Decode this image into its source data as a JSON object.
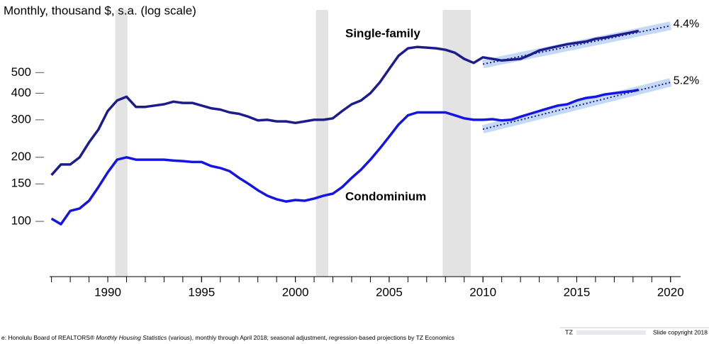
{
  "chart_data": {
    "type": "line",
    "ylabel": "Monthly, thousand $, s.a. (log scale)",
    "log_scale": true,
    "xlim": [
      1986.9,
      2020.5
    ],
    "ylim": [
      55,
      1000
    ],
    "xticks": [
      1990,
      1995,
      2000,
      2005,
      2010,
      2015,
      2020
    ],
    "yticks": [
      100,
      150,
      200,
      300,
      400,
      500
    ],
    "shaded": [
      [
        1990.4,
        1991.05
      ],
      [
        2001.1,
        2001.75
      ],
      [
        2007.85,
        2009.35
      ]
    ],
    "shade_color": "#e3e3e3",
    "x": [
      1987,
      1987.5,
      1988,
      1988.5,
      1989,
      1989.5,
      1990,
      1990.5,
      1991,
      1991.5,
      1992,
      1992.5,
      1993,
      1993.5,
      1994,
      1994.5,
      1995,
      1995.5,
      1996,
      1996.5,
      1997,
      1997.5,
      1998,
      1998.5,
      1999,
      1999.5,
      2000,
      2000.5,
      2001,
      2001.5,
      2002,
      2002.5,
      2003,
      2003.5,
      2004,
      2004.5,
      2005,
      2005.5,
      2006,
      2006.5,
      2007,
      2007.5,
      2008,
      2008.5,
      2009,
      2009.5,
      2010,
      2010.5,
      2011,
      2011.5,
      2012,
      2012.5,
      2013,
      2013.5,
      2014,
      2014.5,
      2015,
      2015.5,
      2016,
      2016.5,
      2017,
      2017.5,
      2018,
      2018.3
    ],
    "series": [
      {
        "name": "Single-family",
        "color": "#1c1c8e",
        "values": [
          165,
          185,
          185,
          200,
          235,
          270,
          330,
          370,
          385,
          345,
          345,
          350,
          355,
          365,
          360,
          360,
          350,
          340,
          335,
          325,
          320,
          310,
          298,
          300,
          295,
          295,
          290,
          295,
          300,
          300,
          305,
          330,
          355,
          370,
          400,
          450,
          520,
          600,
          650,
          660,
          655,
          650,
          640,
          620,
          580,
          555,
          590,
          580,
          570,
          575,
          580,
          605,
          635,
          650,
          665,
          680,
          690,
          700,
          720,
          730,
          745,
          760,
          775,
          785
        ]
      },
      {
        "name": "Condominium",
        "color": "#1414e6",
        "values": [
          103,
          97,
          112,
          115,
          125,
          145,
          170,
          195,
          200,
          195,
          195,
          195,
          195,
          193,
          192,
          190,
          190,
          182,
          178,
          172,
          160,
          150,
          140,
          132,
          127,
          124,
          126,
          125,
          128,
          132,
          135,
          145,
          160,
          175,
          195,
          220,
          250,
          285,
          315,
          325,
          325,
          325,
          325,
          315,
          305,
          300,
          300,
          302,
          298,
          300,
          310,
          320,
          330,
          340,
          350,
          355,
          370,
          380,
          385,
          395,
          400,
          405,
          410,
          415
        ]
      }
    ],
    "trends": [
      {
        "label": "4.4%",
        "x": [
          2010,
          2020
        ],
        "values": [
          548,
          830
        ]
      },
      {
        "label": "5.2%",
        "x": [
          2010,
          2020
        ],
        "values": [
          271,
          450
        ]
      }
    ],
    "trend_color": "#1c1c8e",
    "band_color": "#b5d0f2",
    "note": {
      "prefix": "e:   Honolulu Board of REALTORS® ",
      "italic": "Monthly Housing Statistics",
      "suffix": " (various), monthly through April 2018; seasonal adjustment, regression-based projections by TZ Economics"
    },
    "brand": "TZ",
    "copyright": "Slide copyright 2018"
  }
}
